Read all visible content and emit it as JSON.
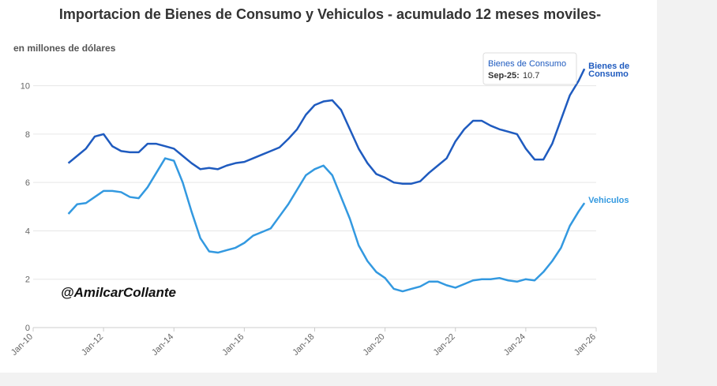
{
  "chart_data": {
    "type": "line",
    "title": "Importacion de Bienes de Consumo y Vehiculos - acumulado 12 meses moviles-",
    "y_label": "en millones de dólares",
    "watermark": "@AmilcarCollante",
    "x": [
      "Jan-11",
      "Apr-11",
      "Jul-11",
      "Oct-11",
      "Jan-12",
      "Apr-12",
      "Jul-12",
      "Oct-12",
      "Jan-13",
      "Apr-13",
      "Jul-13",
      "Oct-13",
      "Jan-14",
      "Apr-14",
      "Jul-14",
      "Oct-14",
      "Jan-15",
      "Apr-15",
      "Jul-15",
      "Oct-15",
      "Jan-16",
      "Apr-16",
      "Jul-16",
      "Oct-16",
      "Jan-17",
      "Apr-17",
      "Jul-17",
      "Oct-17",
      "Jan-18",
      "Apr-18",
      "Jul-18",
      "Oct-18",
      "Jan-19",
      "Apr-19",
      "Jul-19",
      "Oct-19",
      "Jan-20",
      "Apr-20",
      "Jul-20",
      "Oct-20",
      "Jan-21",
      "Apr-21",
      "Jul-21",
      "Oct-21",
      "Jan-22",
      "Apr-22",
      "Jul-22",
      "Oct-22",
      "Jan-23",
      "Apr-23",
      "Jul-23",
      "Oct-23",
      "Jan-24",
      "Apr-24",
      "Jul-24",
      "Oct-24",
      "Jan-25",
      "Apr-25",
      "Jul-25",
      "Sep-25"
    ],
    "series": [
      {
        "name": "Bienes de Consumo",
        "color": "#1f5bbf",
        "values": [
          6.8,
          7.1,
          7.4,
          7.9,
          8.0,
          7.5,
          7.3,
          7.25,
          7.25,
          7.6,
          7.6,
          7.5,
          7.4,
          7.1,
          6.8,
          6.55,
          6.6,
          6.55,
          6.7,
          6.8,
          6.85,
          7.0,
          7.15,
          7.3,
          7.45,
          7.8,
          8.2,
          8.8,
          9.2,
          9.35,
          9.4,
          9.0,
          8.2,
          7.4,
          6.8,
          6.35,
          6.2,
          6.0,
          5.95,
          5.95,
          6.05,
          6.4,
          6.7,
          7.0,
          7.7,
          8.2,
          8.55,
          8.55,
          8.35,
          8.2,
          8.1,
          8.0,
          7.4,
          6.95,
          6.95,
          7.6,
          8.6,
          9.6,
          10.2,
          10.7
        ]
      },
      {
        "name": "Vehiculos",
        "color": "#3399e0",
        "values": [
          4.7,
          5.1,
          5.15,
          5.4,
          5.65,
          5.65,
          5.6,
          5.4,
          5.35,
          5.8,
          6.4,
          7.0,
          6.9,
          6.0,
          4.8,
          3.7,
          3.15,
          3.1,
          3.2,
          3.3,
          3.5,
          3.8,
          3.95,
          4.1,
          4.6,
          5.1,
          5.7,
          6.3,
          6.55,
          6.7,
          6.3,
          5.4,
          4.5,
          3.4,
          2.75,
          2.3,
          2.05,
          1.6,
          1.5,
          1.6,
          1.7,
          1.9,
          1.9,
          1.75,
          1.65,
          1.8,
          1.95,
          2.0,
          2.0,
          2.05,
          1.95,
          1.9,
          2.0,
          1.95,
          2.3,
          2.75,
          3.3,
          4.2,
          4.8,
          5.15
        ]
      }
    ],
    "tooltip": {
      "series": 0,
      "label": "Sep-25:"
    },
    "xlim": [
      "Jan-10",
      "Jan-26"
    ],
    "xticks": [
      "Jan-10",
      "Jan-12",
      "Jan-14",
      "Jan-16",
      "Jan-18",
      "Jan-20",
      "Jan-22",
      "Jan-24",
      "Jan-26"
    ],
    "ylim": [
      0,
      11
    ],
    "yticks": [
      0,
      2,
      4,
      6,
      8,
      10
    ],
    "grid": true
  }
}
